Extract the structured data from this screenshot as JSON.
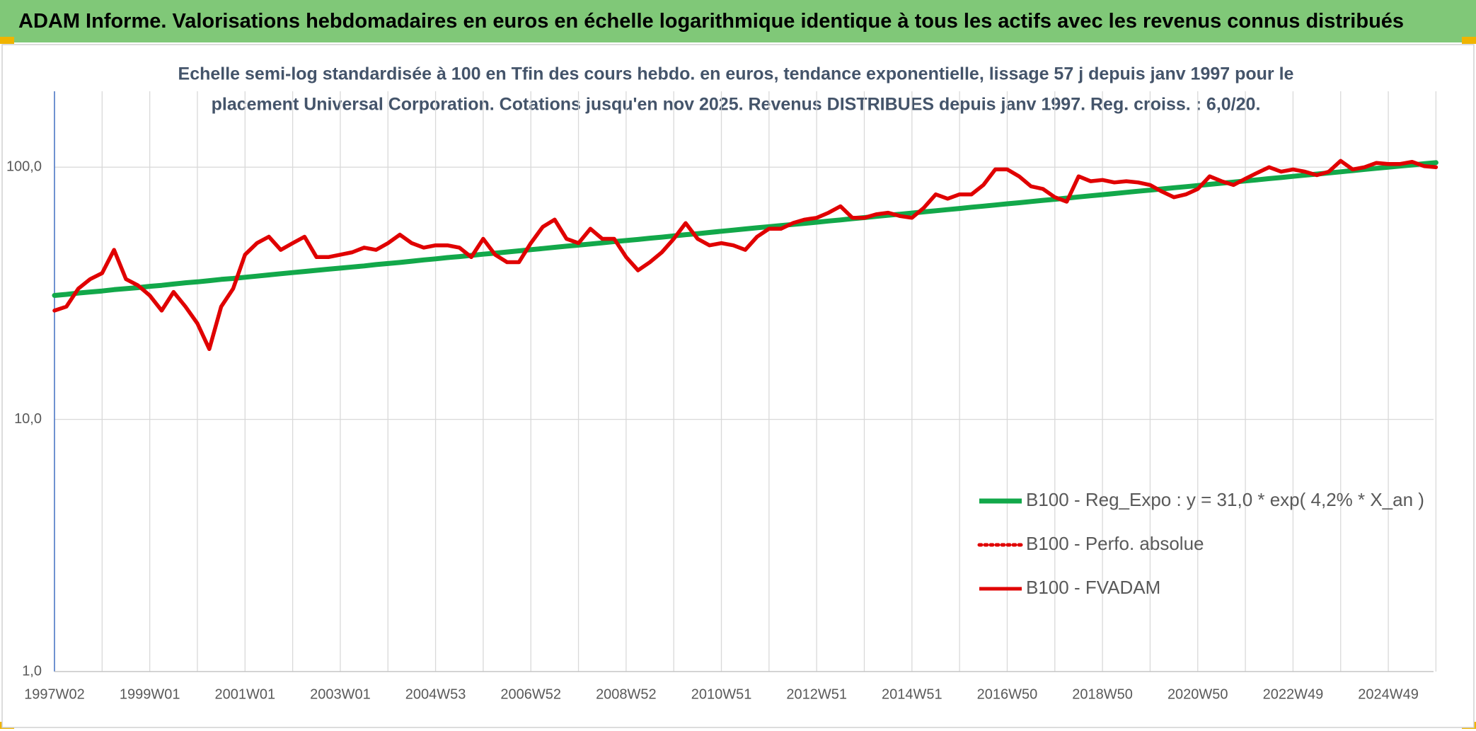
{
  "header": {
    "title": "ADAM Informe. Valorisations hebdomadaires en euros en échelle logarithmique identique à tous les actifs avec les revenus connus distribués"
  },
  "chart_data": {
    "type": "line",
    "subtitle": [
      "Echelle semi-log standardisée à 100 en Tfin des cours hebdo. en euros, tendance exponentielle, lissage 57 j depuis janv 1997 pour le",
      "placement Universal Corporation. Cotations jusqu'en nov 2025. Revenus DISTRIBUES depuis janv 1997. Reg. croiss. : 6,0/20."
    ],
    "log_scale": true,
    "grid": true,
    "legend": "bottom-right",
    "ylim": [
      1,
      200
    ],
    "yticks": [
      {
        "value": 1,
        "label": "1,0"
      },
      {
        "value": 10,
        "label": "10,0"
      },
      {
        "value": 100,
        "label": "100,0"
      }
    ],
    "categories": [
      "1997W02",
      null,
      null,
      null,
      null,
      null,
      null,
      null,
      "1999W01",
      null,
      null,
      null,
      null,
      null,
      null,
      null,
      "2001W01",
      null,
      null,
      null,
      null,
      null,
      null,
      null,
      "2003W01",
      null,
      null,
      null,
      null,
      null,
      null,
      null,
      "2004W53",
      null,
      null,
      null,
      null,
      null,
      null,
      null,
      "2006W52",
      null,
      null,
      null,
      null,
      null,
      null,
      null,
      "2008W52",
      null,
      null,
      null,
      null,
      null,
      null,
      null,
      "2010W51",
      null,
      null,
      null,
      null,
      null,
      null,
      null,
      "2012W51",
      null,
      null,
      null,
      null,
      null,
      null,
      null,
      "2014W51",
      null,
      null,
      null,
      null,
      null,
      null,
      null,
      "2016W50",
      null,
      null,
      null,
      null,
      null,
      null,
      null,
      "2018W50",
      null,
      null,
      null,
      null,
      null,
      null,
      null,
      "2020W50",
      null,
      null,
      null,
      null,
      null,
      null,
      null,
      "2022W49",
      null,
      null,
      null,
      null,
      null,
      null,
      null,
      "2024W49",
      null,
      null,
      null,
      null
    ],
    "series": [
      {
        "name": "B100 - Reg_Expo : y = 31,0 * exp( 4,2% *  X_an )",
        "color": "#12a84a",
        "style": "solid",
        "values": [
          31.0,
          31.3,
          31.7,
          32.0,
          32.3,
          32.7,
          33.0,
          33.3,
          33.7,
          34.0,
          34.4,
          34.8,
          35.1,
          35.5,
          35.9,
          36.2,
          36.6,
          37.0,
          37.4,
          37.8,
          38.2,
          38.6,
          39.0,
          39.4,
          39.8,
          40.2,
          40.6,
          41.1,
          41.5,
          41.9,
          42.4,
          42.9,
          43.3,
          43.8,
          44.2,
          44.7,
          45.2,
          45.6,
          46.1,
          46.6,
          47.1,
          47.6,
          48.1,
          48.6,
          49.1,
          49.6,
          50.1,
          50.7,
          51.2,
          51.7,
          52.3,
          52.8,
          53.4,
          54.0,
          54.5,
          55.1,
          55.7,
          56.3,
          56.9,
          57.5,
          58.1,
          58.7,
          59.3,
          59.9,
          60.5,
          61.2,
          61.8,
          62.5,
          63.1,
          63.8,
          64.5,
          65.1,
          65.8,
          66.5,
          67.2,
          67.9,
          68.6,
          69.4,
          70.1,
          70.8,
          71.6,
          72.3,
          73.1,
          73.9,
          74.6,
          75.4,
          76.2,
          77.0,
          77.8,
          78.6,
          79.5,
          80.3,
          81.1,
          82.0,
          82.9,
          83.7,
          84.6,
          85.5,
          86.4,
          87.3,
          88.2,
          89.1,
          90.1,
          91.0,
          92.0,
          93.0,
          93.9,
          94.9,
          95.9,
          96.9,
          98.0,
          99.0,
          100.0,
          101.1,
          102.1,
          103.2,
          104.3
        ]
      },
      {
        "name": "B100 - Perfo. absolue",
        "color": "#e00000",
        "style": "dotted"
      },
      {
        "name": "B100 - FVADAM",
        "color": "#e00000",
        "style": "solid",
        "values": [
          27,
          28,
          33,
          36,
          38,
          47,
          36,
          34,
          31,
          27,
          32,
          28,
          24,
          19,
          28,
          33,
          45,
          50,
          53,
          47,
          50,
          53,
          44,
          44,
          45,
          46,
          48,
          47,
          50,
          54,
          50,
          48,
          49,
          49,
          48,
          44,
          52,
          45,
          42,
          42,
          50,
          58,
          62,
          52,
          50,
          57,
          52,
          52,
          44,
          39,
          42,
          46,
          52,
          60,
          52,
          49,
          50,
          49,
          47,
          53,
          57,
          57,
          60,
          62,
          63,
          66,
          70,
          63,
          63,
          65,
          66,
          64,
          63,
          69,
          78,
          75,
          78,
          78,
          85,
          98,
          98,
          92,
          84,
          82,
          76,
          73,
          92,
          88,
          89,
          87,
          88,
          87,
          85,
          80,
          76,
          78,
          82,
          92,
          88,
          85,
          90,
          95,
          100,
          96,
          98,
          96,
          93,
          96,
          106,
          98,
          100,
          104,
          103,
          103,
          105,
          101,
          100
        ]
      }
    ]
  }
}
